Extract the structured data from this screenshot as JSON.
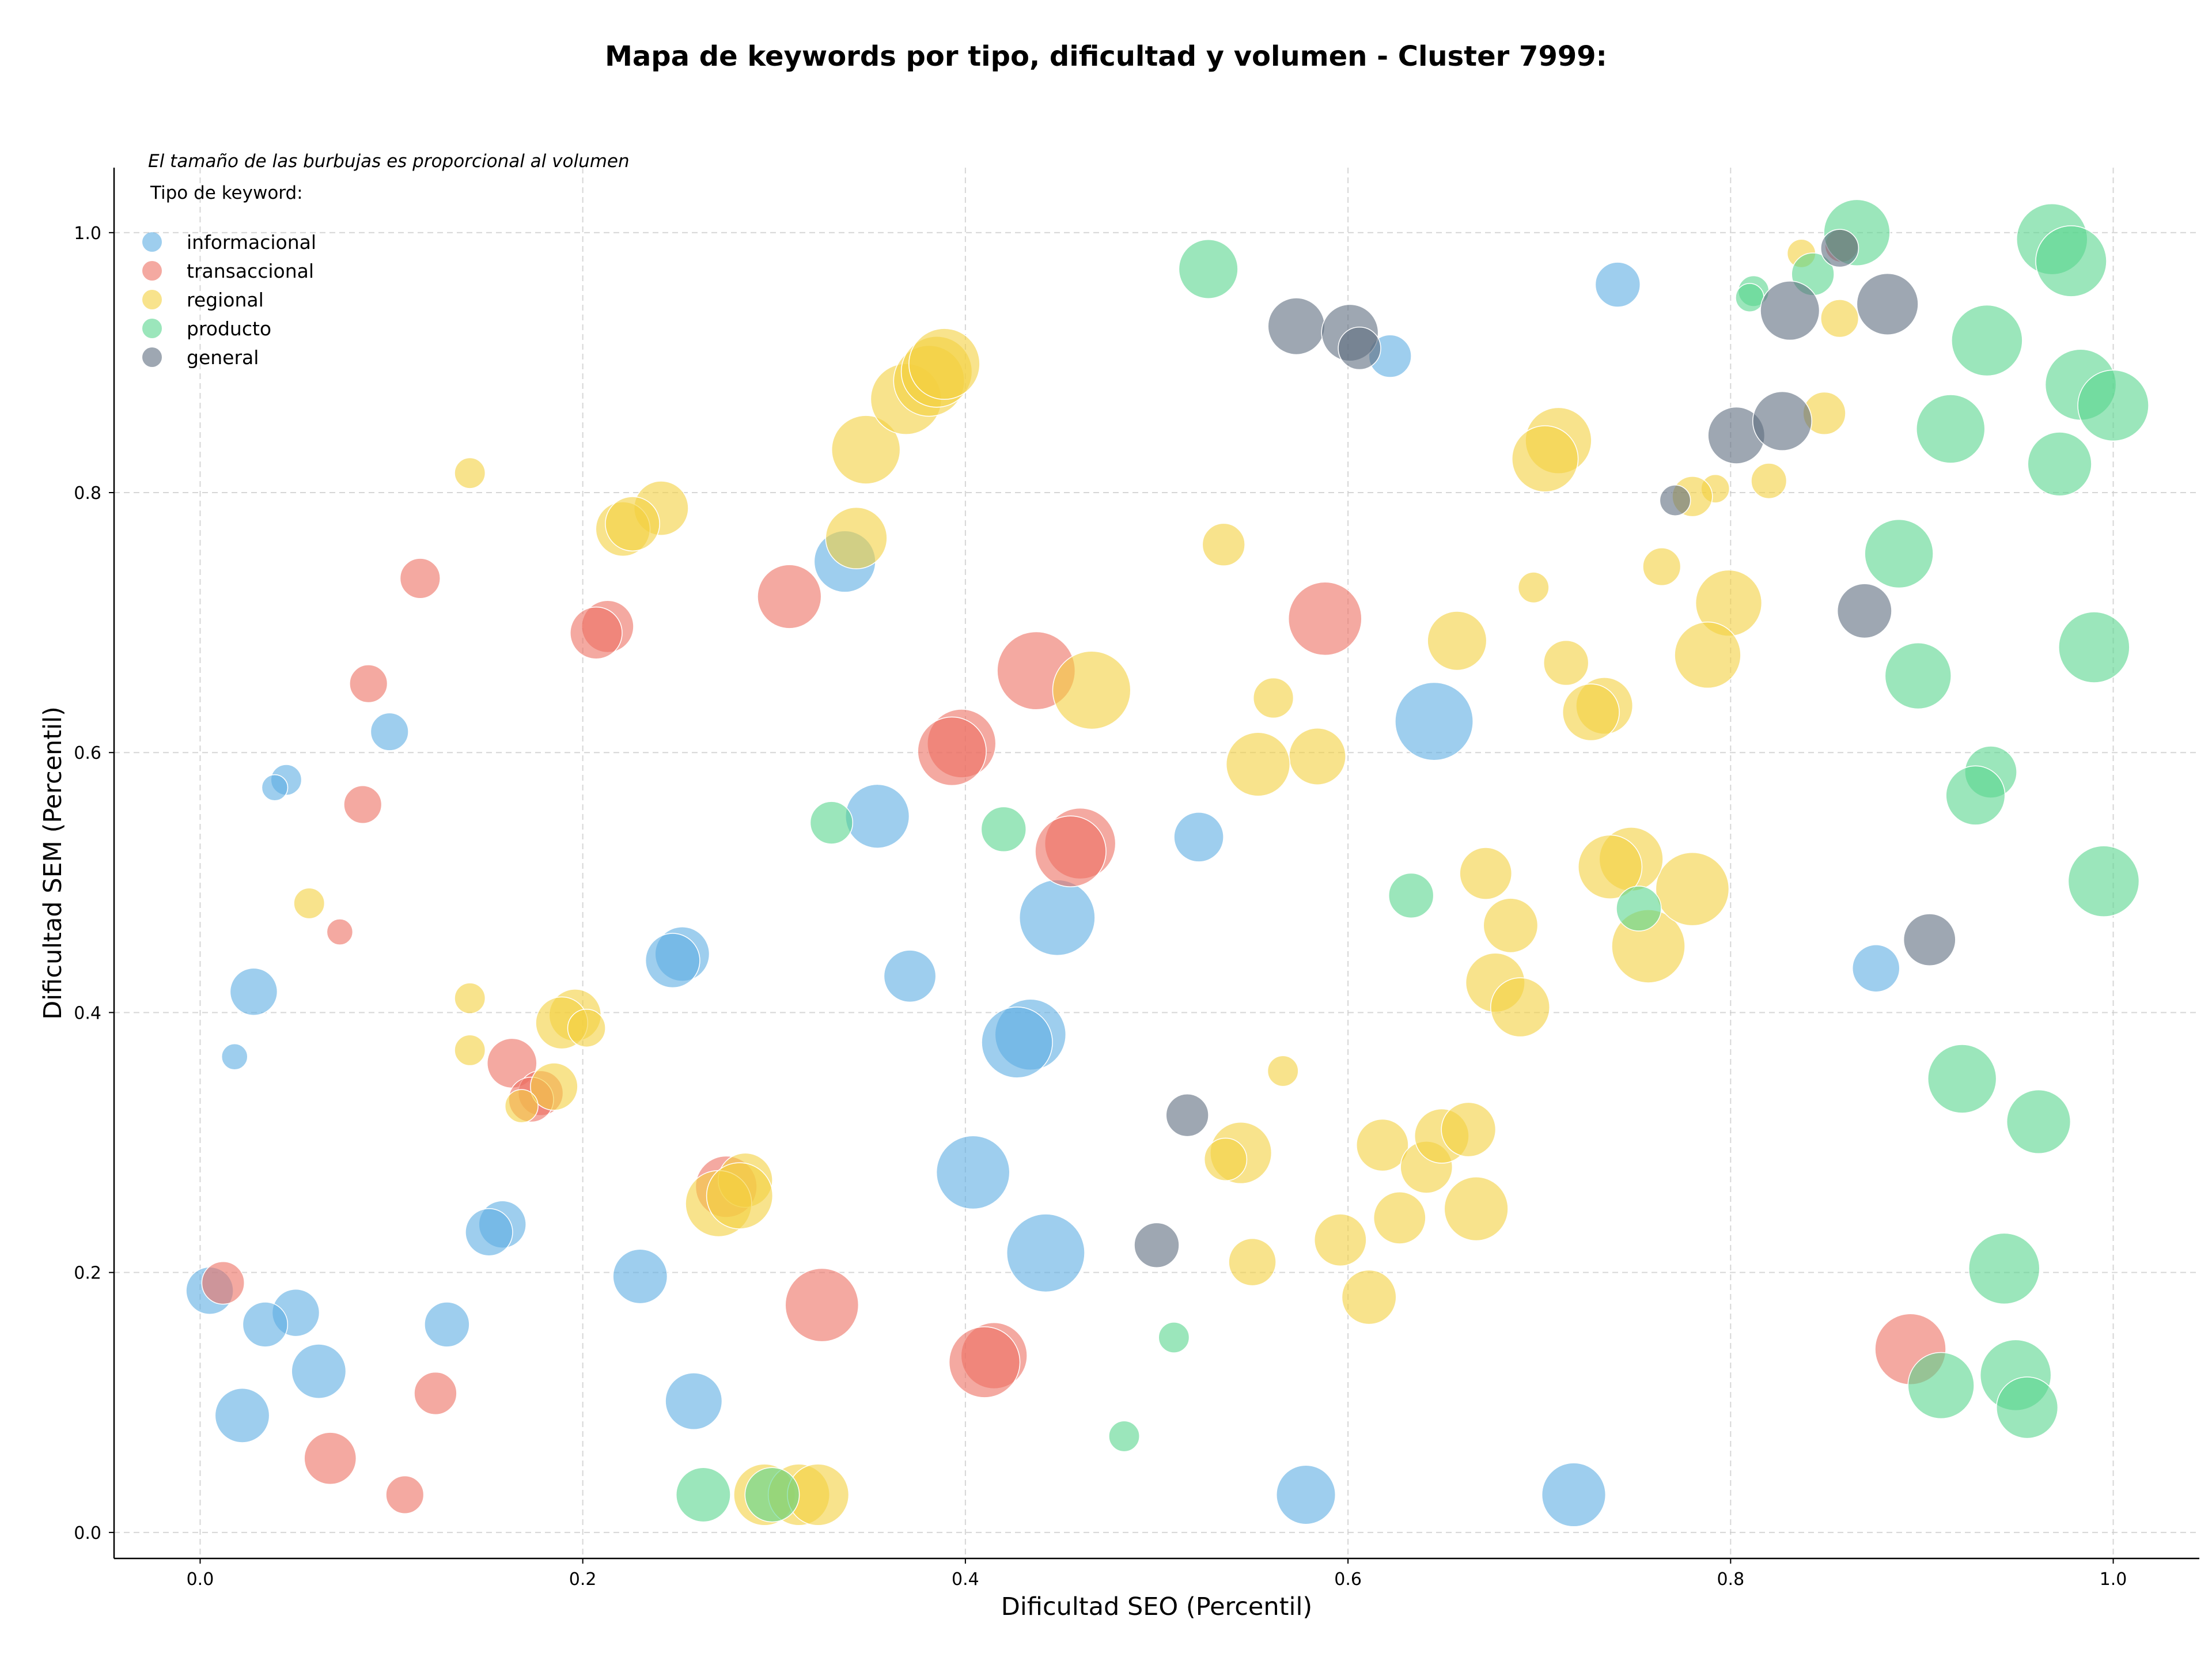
{
  "chart_data": {
    "type": "scatter",
    "title": "Mapa de keywords por tipo, dificultad y volumen - Cluster 7999:",
    "xlabel": "Dificultad SEO (Percentil)",
    "ylabel": "Dificultad SEM (Percentil)",
    "xlim": [
      -0.045,
      1.045
    ],
    "ylim": [
      -0.02,
      1.05
    ],
    "xticks": [
      0.0,
      0.2,
      0.4,
      0.6,
      0.8,
      1.0
    ],
    "yticks": [
      0.0,
      0.2,
      0.4,
      0.6,
      0.8,
      1.0
    ],
    "xtick_labels": [
      "0.0",
      "0.2",
      "0.4",
      "0.6",
      "0.8",
      "1.0"
    ],
    "ytick_labels": [
      "0.0",
      "0.2",
      "0.4",
      "0.6",
      "0.8",
      "1.0"
    ],
    "grid": true,
    "legend": {
      "placement": "top-left",
      "note": "El tamaño de las burbujas es proporcional al volumen",
      "title": "Tipo de keyword:"
    },
    "series": [
      {
        "name": "informacional",
        "color": "#5dade2",
        "points": [
          [
            0.741,
            0.96,
            19
          ],
          [
            0.622,
            0.905,
            18
          ],
          [
            0.337,
            0.747,
            26
          ],
          [
            0.099,
            0.616,
            16
          ],
          [
            0.045,
            0.579,
            13
          ],
          [
            0.039,
            0.573,
            11
          ],
          [
            0.354,
            0.551,
            27
          ],
          [
            0.522,
            0.535,
            21
          ],
          [
            0.645,
            0.624,
            33
          ],
          [
            0.448,
            0.473,
            32
          ],
          [
            0.252,
            0.445,
            23
          ],
          [
            0.247,
            0.44,
            23
          ],
          [
            0.371,
            0.428,
            22
          ],
          [
            0.028,
            0.416,
            20
          ],
          [
            0.018,
            0.366,
            11
          ],
          [
            0.434,
            0.383,
            30
          ],
          [
            0.427,
            0.377,
            30
          ],
          [
            0.876,
            0.434,
            20
          ],
          [
            0.158,
            0.237,
            20
          ],
          [
            0.151,
            0.231,
            20
          ],
          [
            0.23,
            0.197,
            23
          ],
          [
            0.404,
            0.277,
            31
          ],
          [
            0.442,
            0.215,
            33
          ],
          [
            0.005,
            0.186,
            20
          ],
          [
            0.05,
            0.169,
            20
          ],
          [
            0.034,
            0.16,
            19
          ],
          [
            0.129,
            0.16,
            19
          ],
          [
            0.062,
            0.124,
            23
          ],
          [
            0.022,
            0.09,
            23
          ],
          [
            0.258,
            0.101,
            24
          ],
          [
            0.578,
            0.029,
            25
          ],
          [
            0.718,
            0.029,
            27
          ]
        ]
      },
      {
        "name": "transaccional",
        "color": "#ec7063",
        "points": [
          [
            0.115,
            0.734,
            17
          ],
          [
            0.308,
            0.72,
            27
          ],
          [
            0.213,
            0.697,
            22
          ],
          [
            0.207,
            0.692,
            22
          ],
          [
            0.088,
            0.653,
            16
          ],
          [
            0.437,
            0.663,
            33
          ],
          [
            0.588,
            0.703,
            31
          ],
          [
            0.398,
            0.607,
            29
          ],
          [
            0.393,
            0.601,
            29
          ],
          [
            0.085,
            0.56,
            16
          ],
          [
            0.46,
            0.53,
            30
          ],
          [
            0.455,
            0.524,
            30
          ],
          [
            0.073,
            0.462,
            11
          ],
          [
            0.163,
            0.361,
            21
          ],
          [
            0.178,
            0.338,
            19
          ],
          [
            0.173,
            0.333,
            19
          ],
          [
            0.275,
            0.266,
            26
          ],
          [
            0.325,
            0.175,
            31
          ],
          [
            0.415,
            0.136,
            28
          ],
          [
            0.41,
            0.131,
            30
          ],
          [
            0.894,
            0.141,
            30
          ],
          [
            0.012,
            0.192,
            18
          ],
          [
            0.123,
            0.107,
            18
          ],
          [
            0.068,
            0.057,
            22
          ],
          [
            0.107,
            0.029,
            16
          ],
          [
            0.858,
            0.99,
            14
          ]
        ]
      },
      {
        "name": "regional",
        "color": "#f4d03f",
        "points": [
          [
            0.141,
            0.815,
            13
          ],
          [
            0.348,
            0.833,
            29
          ],
          [
            0.369,
            0.872,
            30
          ],
          [
            0.381,
            0.886,
            30
          ],
          [
            0.385,
            0.893,
            30
          ],
          [
            0.389,
            0.899,
            30
          ],
          [
            0.241,
            0.788,
            23
          ],
          [
            0.221,
            0.772,
            23
          ],
          [
            0.226,
            0.776,
            23
          ],
          [
            0.343,
            0.765,
            26
          ],
          [
            0.535,
            0.76,
            18
          ],
          [
            0.561,
            0.642,
            17
          ],
          [
            0.584,
            0.597,
            24
          ],
          [
            0.553,
            0.591,
            27
          ],
          [
            0.466,
            0.648,
            33
          ],
          [
            0.657,
            0.686,
            25
          ],
          [
            0.697,
            0.727,
            13
          ],
          [
            0.71,
            0.84,
            28
          ],
          [
            0.703,
            0.826,
            28
          ],
          [
            0.714,
            0.669,
            19
          ],
          [
            0.764,
            0.743,
            16
          ],
          [
            0.799,
            0.715,
            28
          ],
          [
            0.788,
            0.675,
            28
          ],
          [
            0.734,
            0.636,
            24
          ],
          [
            0.727,
            0.631,
            24
          ],
          [
            0.837,
            0.984,
            12
          ],
          [
            0.857,
            0.934,
            16
          ],
          [
            0.849,
            0.861,
            18
          ],
          [
            0.82,
            0.809,
            15
          ],
          [
            0.792,
            0.803,
            12
          ],
          [
            0.78,
            0.797,
            17
          ],
          [
            0.757,
            0.451,
            31
          ],
          [
            0.78,
            0.495,
            31
          ],
          [
            0.748,
            0.518,
            27
          ],
          [
            0.737,
            0.512,
            27
          ],
          [
            0.672,
            0.507,
            22
          ],
          [
            0.685,
            0.467,
            23
          ],
          [
            0.677,
            0.423,
            25
          ],
          [
            0.69,
            0.404,
            25
          ],
          [
            0.057,
            0.484,
            13
          ],
          [
            0.141,
            0.411,
            13
          ],
          [
            0.141,
            0.371,
            13
          ],
          [
            0.196,
            0.398,
            22
          ],
          [
            0.189,
            0.392,
            22
          ],
          [
            0.202,
            0.388,
            16
          ],
          [
            0.185,
            0.343,
            20
          ],
          [
            0.168,
            0.328,
            14
          ],
          [
            0.566,
            0.355,
            13
          ],
          [
            0.544,
            0.292,
            26
          ],
          [
            0.536,
            0.287,
            18
          ],
          [
            0.618,
            0.298,
            22
          ],
          [
            0.641,
            0.281,
            22
          ],
          [
            0.649,
            0.305,
            23
          ],
          [
            0.663,
            0.31,
            23
          ],
          [
            0.667,
            0.249,
            27
          ],
          [
            0.627,
            0.242,
            22
          ],
          [
            0.596,
            0.225,
            22
          ],
          [
            0.55,
            0.208,
            20
          ],
          [
            0.611,
            0.181,
            23
          ],
          [
            0.285,
            0.271,
            23
          ],
          [
            0.271,
            0.253,
            28
          ],
          [
            0.282,
            0.259,
            28
          ],
          [
            0.295,
            0.029,
            26
          ],
          [
            0.313,
            0.029,
            26
          ],
          [
            0.323,
            0.029,
            26
          ]
        ]
      },
      {
        "name": "producto",
        "color": "#58d68d",
        "points": [
          [
            0.527,
            0.972,
            25
          ],
          [
            0.866,
            1.0,
            28
          ],
          [
            0.968,
            0.995,
            30
          ],
          [
            0.978,
            0.978,
            30
          ],
          [
            0.812,
            0.955,
            13
          ],
          [
            0.81,
            0.95,
            12
          ],
          [
            0.843,
            0.968,
            18
          ],
          [
            0.934,
            0.917,
            30
          ],
          [
            0.983,
            0.883,
            30
          ],
          [
            1.0,
            0.867,
            30
          ],
          [
            0.915,
            0.849,
            29
          ],
          [
            0.972,
            0.822,
            27
          ],
          [
            0.888,
            0.753,
            29
          ],
          [
            0.99,
            0.681,
            30
          ],
          [
            0.898,
            0.659,
            28
          ],
          [
            0.936,
            0.585,
            22
          ],
          [
            0.928,
            0.567,
            25
          ],
          [
            0.995,
            0.501,
            30
          ],
          [
            0.633,
            0.49,
            19
          ],
          [
            0.752,
            0.48,
            19
          ],
          [
            0.33,
            0.546,
            18
          ],
          [
            0.42,
            0.541,
            19
          ],
          [
            0.921,
            0.349,
            29
          ],
          [
            0.961,
            0.316,
            27
          ],
          [
            0.943,
            0.203,
            30
          ],
          [
            0.949,
            0.121,
            30
          ],
          [
            0.91,
            0.113,
            28
          ],
          [
            0.955,
            0.096,
            26
          ],
          [
            0.509,
            0.15,
            13
          ],
          [
            0.483,
            0.074,
            13
          ],
          [
            0.263,
            0.029,
            23
          ],
          [
            0.299,
            0.029,
            23
          ]
        ]
      },
      {
        "name": "general",
        "color": "#5d6d7e",
        "points": [
          [
            0.573,
            0.928,
            24
          ],
          [
            0.601,
            0.923,
            24
          ],
          [
            0.606,
            0.911,
            18
          ],
          [
            0.831,
            0.94,
            25
          ],
          [
            0.882,
            0.945,
            26
          ],
          [
            0.857,
            0.988,
            16
          ],
          [
            0.803,
            0.844,
            24
          ],
          [
            0.827,
            0.855,
            25
          ],
          [
            0.771,
            0.794,
            13
          ],
          [
            0.87,
            0.709,
            23
          ],
          [
            0.904,
            0.456,
            22
          ],
          [
            0.516,
            0.321,
            18
          ],
          [
            0.5,
            0.221,
            19
          ]
        ]
      }
    ]
  }
}
